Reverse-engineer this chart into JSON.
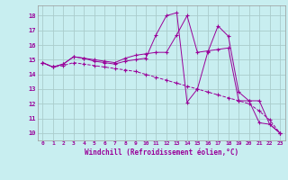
{
  "xlabel": "Windchill (Refroidissement éolien,°C)",
  "background_color": "#c8eef0",
  "line_color": "#990099",
  "grid_color": "#aacccc",
  "xlim": [
    -0.5,
    23.5
  ],
  "ylim": [
    9.5,
    18.7
  ],
  "xticks": [
    0,
    1,
    2,
    3,
    4,
    5,
    6,
    7,
    8,
    9,
    10,
    11,
    12,
    13,
    14,
    15,
    16,
    17,
    18,
    19,
    20,
    21,
    22,
    23
  ],
  "yticks": [
    10,
    11,
    12,
    13,
    14,
    15,
    16,
    17,
    18
  ],
  "line1_x": [
    0,
    1,
    2,
    3,
    4,
    5,
    6,
    7,
    8,
    9,
    10,
    11,
    12,
    13,
    14,
    15,
    16,
    17,
    18,
    19,
    20,
    21,
    22,
    23
  ],
  "line1_y": [
    14.8,
    14.5,
    14.7,
    15.2,
    15.1,
    15.0,
    14.9,
    14.8,
    15.1,
    15.3,
    15.4,
    15.5,
    15.5,
    16.7,
    18.0,
    15.5,
    15.6,
    15.7,
    15.8,
    12.2,
    12.2,
    10.7,
    10.6,
    10.0
  ],
  "line2_x": [
    0,
    1,
    2,
    3,
    4,
    5,
    6,
    7,
    8,
    9,
    10,
    11,
    12,
    13,
    14,
    15,
    16,
    17,
    18,
    19,
    20,
    21,
    22,
    23
  ],
  "line2_y": [
    14.8,
    14.5,
    14.7,
    15.2,
    15.1,
    14.9,
    14.8,
    14.7,
    14.9,
    15.0,
    15.1,
    16.7,
    18.0,
    18.2,
    12.1,
    13.0,
    15.5,
    17.3,
    16.6,
    12.8,
    12.2,
    12.2,
    10.6,
    10.0
  ],
  "line3_x": [
    0,
    1,
    2,
    3,
    4,
    5,
    6,
    7,
    8,
    9,
    10,
    11,
    12,
    13,
    14,
    15,
    16,
    17,
    18,
    19,
    20,
    21,
    22,
    23
  ],
  "line3_y": [
    14.8,
    14.5,
    14.6,
    14.8,
    14.7,
    14.6,
    14.5,
    14.4,
    14.3,
    14.2,
    14.0,
    13.8,
    13.6,
    13.4,
    13.2,
    13.0,
    12.8,
    12.6,
    12.4,
    12.2,
    12.0,
    11.5,
    10.9,
    10.0
  ]
}
